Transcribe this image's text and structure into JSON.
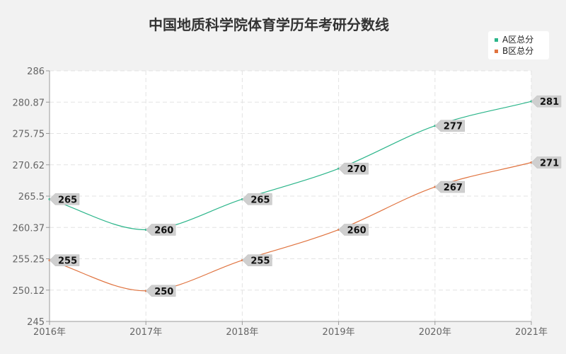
{
  "chart_data": {
    "type": "line",
    "title": "中国地质科学院体育学历年考研分数线",
    "categories": [
      "2016年",
      "2017年",
      "2018年",
      "2019年",
      "2020年",
      "2021年"
    ],
    "y_ticks": [
      "286",
      "280.87",
      "275.75",
      "270.62",
      "265.5",
      "260.37",
      "255.25",
      "250.12",
      "245"
    ],
    "ylim": [
      245,
      286
    ],
    "grid": true,
    "legend_position": "top-right",
    "series": [
      {
        "name": "A区总分",
        "color": "#2bb58a",
        "values": [
          265,
          260,
          265,
          270,
          277,
          281
        ]
      },
      {
        "name": "B区总分",
        "color": "#e0733f",
        "values": [
          255,
          250,
          255,
          260,
          267,
          271
        ]
      }
    ]
  }
}
